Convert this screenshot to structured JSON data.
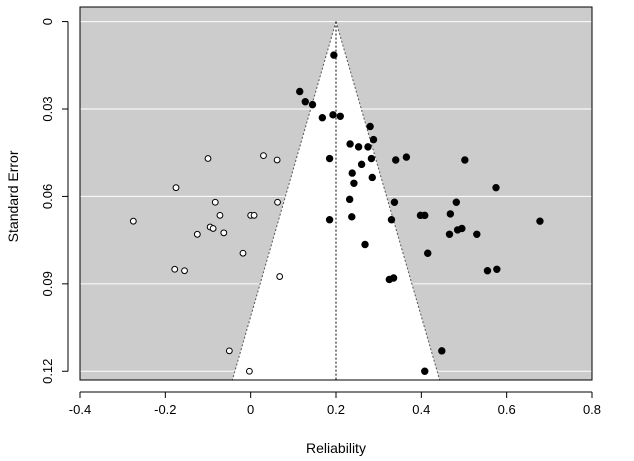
{
  "chart_data": {
    "type": "scatter",
    "title": "",
    "xlabel": "Reliability",
    "ylabel": "Standard Error",
    "xlim": [
      -0.4,
      0.8
    ],
    "ylim": [
      0.123,
      -0.005
    ],
    "y_reversed": true,
    "x_ticks": [
      -0.4,
      -0.2,
      0,
      0.2,
      0.4,
      0.6,
      0.8
    ],
    "x_tick_labels": [
      "-0.4",
      "-0.2",
      "0",
      "0.2",
      "0.4",
      "0.6",
      "0.8"
    ],
    "y_ticks": [
      0,
      0.03,
      0.06,
      0.09,
      0.12
    ],
    "y_tick_labels": [
      "0",
      "0.03",
      "0.06",
      "0.09",
      "0.12"
    ],
    "grid": true,
    "background_color": "#cccccc",
    "funnel": {
      "center": 0.2,
      "apex_se": 0,
      "bottom_se": 0.123,
      "bottom_left": -0.043,
      "bottom_right": 0.443
    },
    "series": [
      {
        "marker": "filled",
        "color": "#000000",
        "points": [
          [
            0.195,
            0.0115
          ],
          [
            0.115,
            0.024
          ],
          [
            0.128,
            0.0275
          ],
          [
            0.145,
            0.0285
          ],
          [
            0.168,
            0.033
          ],
          [
            0.193,
            0.032
          ],
          [
            0.21,
            0.0325
          ],
          [
            0.28,
            0.036
          ],
          [
            0.288,
            0.0405
          ],
          [
            0.275,
            0.043
          ],
          [
            0.233,
            0.042
          ],
          [
            0.253,
            0.043
          ],
          [
            0.185,
            0.047
          ],
          [
            0.26,
            0.049
          ],
          [
            0.283,
            0.047
          ],
          [
            0.34,
            0.0475
          ],
          [
            0.365,
            0.0465
          ],
          [
            0.502,
            0.0475
          ],
          [
            0.238,
            0.052
          ],
          [
            0.242,
            0.0555
          ],
          [
            0.285,
            0.0535
          ],
          [
            0.575,
            0.057
          ],
          [
            0.232,
            0.061
          ],
          [
            0.337,
            0.062
          ],
          [
            0.482,
            0.062
          ],
          [
            0.468,
            0.066
          ],
          [
            0.398,
            0.0665
          ],
          [
            0.408,
            0.0665
          ],
          [
            0.185,
            0.068
          ],
          [
            0.237,
            0.067
          ],
          [
            0.33,
            0.068
          ],
          [
            0.495,
            0.071
          ],
          [
            0.485,
            0.0715
          ],
          [
            0.466,
            0.073
          ],
          [
            0.53,
            0.073
          ],
          [
            0.678,
            0.0685
          ],
          [
            0.268,
            0.0765
          ],
          [
            0.415,
            0.0795
          ],
          [
            0.555,
            0.0855
          ],
          [
            0.577,
            0.085
          ],
          [
            0.325,
            0.0885
          ],
          [
            0.335,
            0.088
          ],
          [
            0.448,
            0.113
          ],
          [
            0.408,
            0.12
          ]
        ]
      },
      {
        "marker": "open",
        "color": "#000000",
        "points": [
          [
            -0.275,
            0.0685
          ],
          [
            -0.175,
            0.057
          ],
          [
            -0.1,
            0.047
          ],
          [
            -0.083,
            0.062
          ],
          [
            -0.072,
            0.0665
          ],
          [
            -0.095,
            0.0705
          ],
          [
            -0.088,
            0.071
          ],
          [
            -0.125,
            0.073
          ],
          [
            -0.063,
            0.0725
          ],
          [
            0.0,
            0.0665
          ],
          [
            0.008,
            0.0665
          ],
          [
            0.03,
            0.046
          ],
          [
            0.062,
            0.0475
          ],
          [
            0.063,
            0.062
          ],
          [
            -0.018,
            0.0795
          ],
          [
            -0.178,
            0.085
          ],
          [
            -0.155,
            0.0855
          ],
          [
            0.068,
            0.0875
          ],
          [
            -0.05,
            0.113
          ],
          [
            -0.003,
            0.12
          ]
        ]
      }
    ]
  }
}
